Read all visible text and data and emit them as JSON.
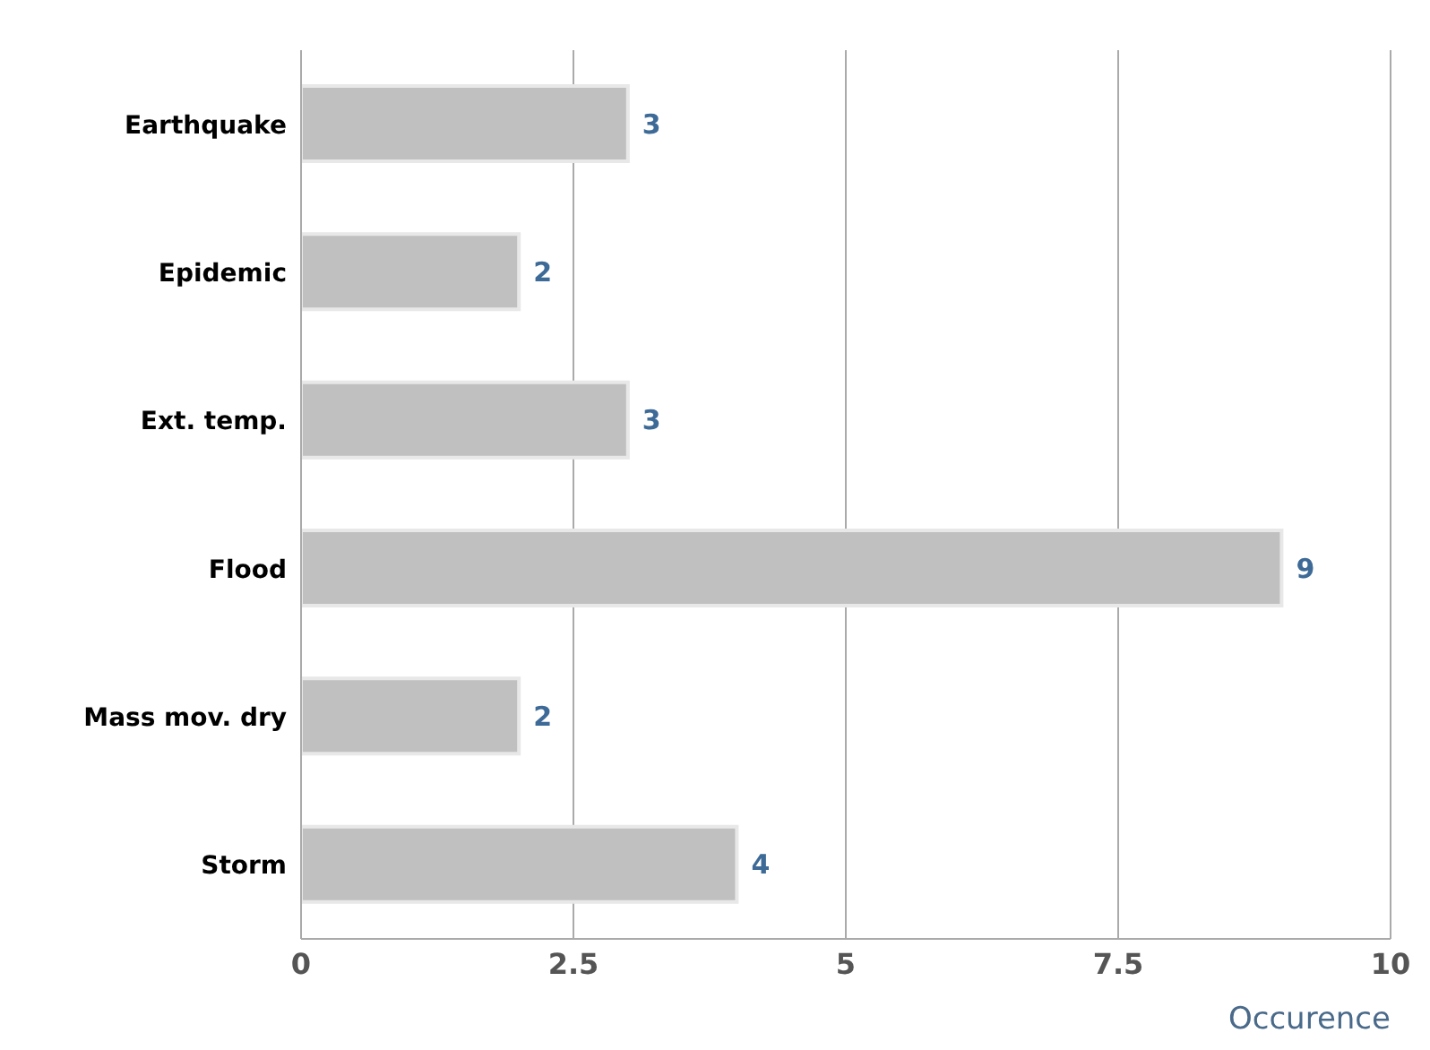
{
  "chart_data": {
    "type": "bar",
    "orientation": "horizontal",
    "xlabel": "Occurence",
    "categories": [
      "Earthquake",
      "Epidemic",
      "Ext. temp.",
      "Flood",
      "Mass mov. dry",
      "Storm"
    ],
    "values": [
      3,
      2,
      3,
      9,
      2,
      4
    ],
    "color": "#c0c0c0",
    "xlim": [
      0,
      10
    ],
    "xticks": [
      0,
      2.5,
      5,
      7.5,
      10
    ],
    "grid": "x",
    "data_labels": true
  }
}
